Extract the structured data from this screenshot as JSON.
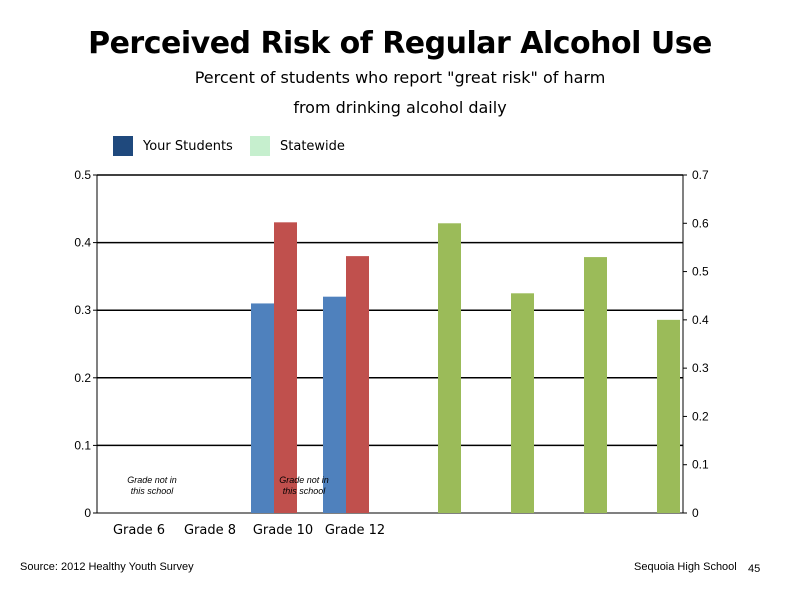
{
  "title": "Perceived Risk of Regular Alcohol Use",
  "subtitle_line1": "Percent of students who report \"great risk\" of harm",
  "subtitle_line2": "from drinking alcohol daily",
  "legend": [
    {
      "label": "Your Students",
      "color": "#1f497d"
    },
    {
      "label": "Statewide",
      "color": "#c6efce"
    }
  ],
  "source": "Source: 2012 Healthy Youth Survey",
  "school": "Sequoia High School",
  "page_number": "45",
  "colors": {
    "blue": "#4f81bd",
    "red": "#c0504d",
    "green": "#9bbb59"
  },
  "chart_data": {
    "type": "bar",
    "title": "Perceived Risk of Regular Alcohol Use",
    "categories": [
      "Grade 6",
      "Grade 8",
      "Grade 10",
      "Grade 12"
    ],
    "primary_axis": {
      "ylim": [
        0,
        0.5
      ],
      "ticks": [
        "0",
        "0.1",
        "0.2",
        "0.3",
        "0.4",
        "0.5"
      ]
    },
    "secondary_axis": {
      "ylim": [
        0,
        0.7
      ],
      "ticks": [
        "0",
        "0.1",
        "0.2",
        "0.3",
        "0.4",
        "0.5",
        "0.6",
        "0.7"
      ]
    },
    "grid": true,
    "annotations": [
      {
        "category": "Grade 6",
        "text_line1": "Grade not in",
        "text_line2": "this school"
      },
      {
        "category": "Grade 10",
        "text_line1": "Grade not in",
        "text_line2": "this school"
      }
    ],
    "bars_primary": [
      {
        "category": "Grade 10",
        "color": "blue",
        "value": 0.31
      },
      {
        "category": "Grade 10",
        "color": "red",
        "value": 0.43
      },
      {
        "category": "Grade 12",
        "color": "blue",
        "value": 0.32
      },
      {
        "category": "Grade 12",
        "color": "red",
        "value": 0.38
      }
    ],
    "bars_secondary": [
      {
        "color": "green",
        "value": 0.6
      },
      {
        "color": "green",
        "value": 0.455
      },
      {
        "color": "green",
        "value": 0.53
      },
      {
        "color": "green",
        "value": 0.4
      }
    ]
  }
}
